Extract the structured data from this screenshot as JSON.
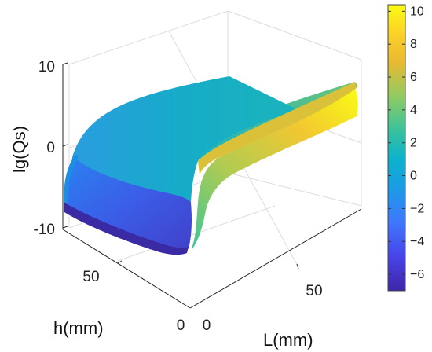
{
  "chart_data": {
    "type": "surface",
    "zlabel": "lg(Qs)",
    "xlabel": "L(mm)",
    "ylabel": "h(mm)",
    "zlim": [
      -10,
      10
    ],
    "z_ticks": [
      "10",
      "0",
      "-10"
    ],
    "x_ticks": [
      "0",
      "50"
    ],
    "y_ticks": [
      "0",
      "50"
    ],
    "grid": true,
    "colormap": "parula",
    "colorbar": {
      "placement": "right",
      "range": [
        -7,
        10.4
      ],
      "ticks": [
        "10",
        "8",
        "6",
        "4",
        "2",
        "0",
        "−2",
        "−4",
        "−6"
      ]
    },
    "colors": [
      "#3e26a8",
      "#4744e8",
      "#3f78fd",
      "#1b9ce6",
      "#0cb2cc",
      "#38c29c",
      "#91cb63",
      "#e9b931",
      "#fcd228",
      "#f9fb15"
    ]
  }
}
